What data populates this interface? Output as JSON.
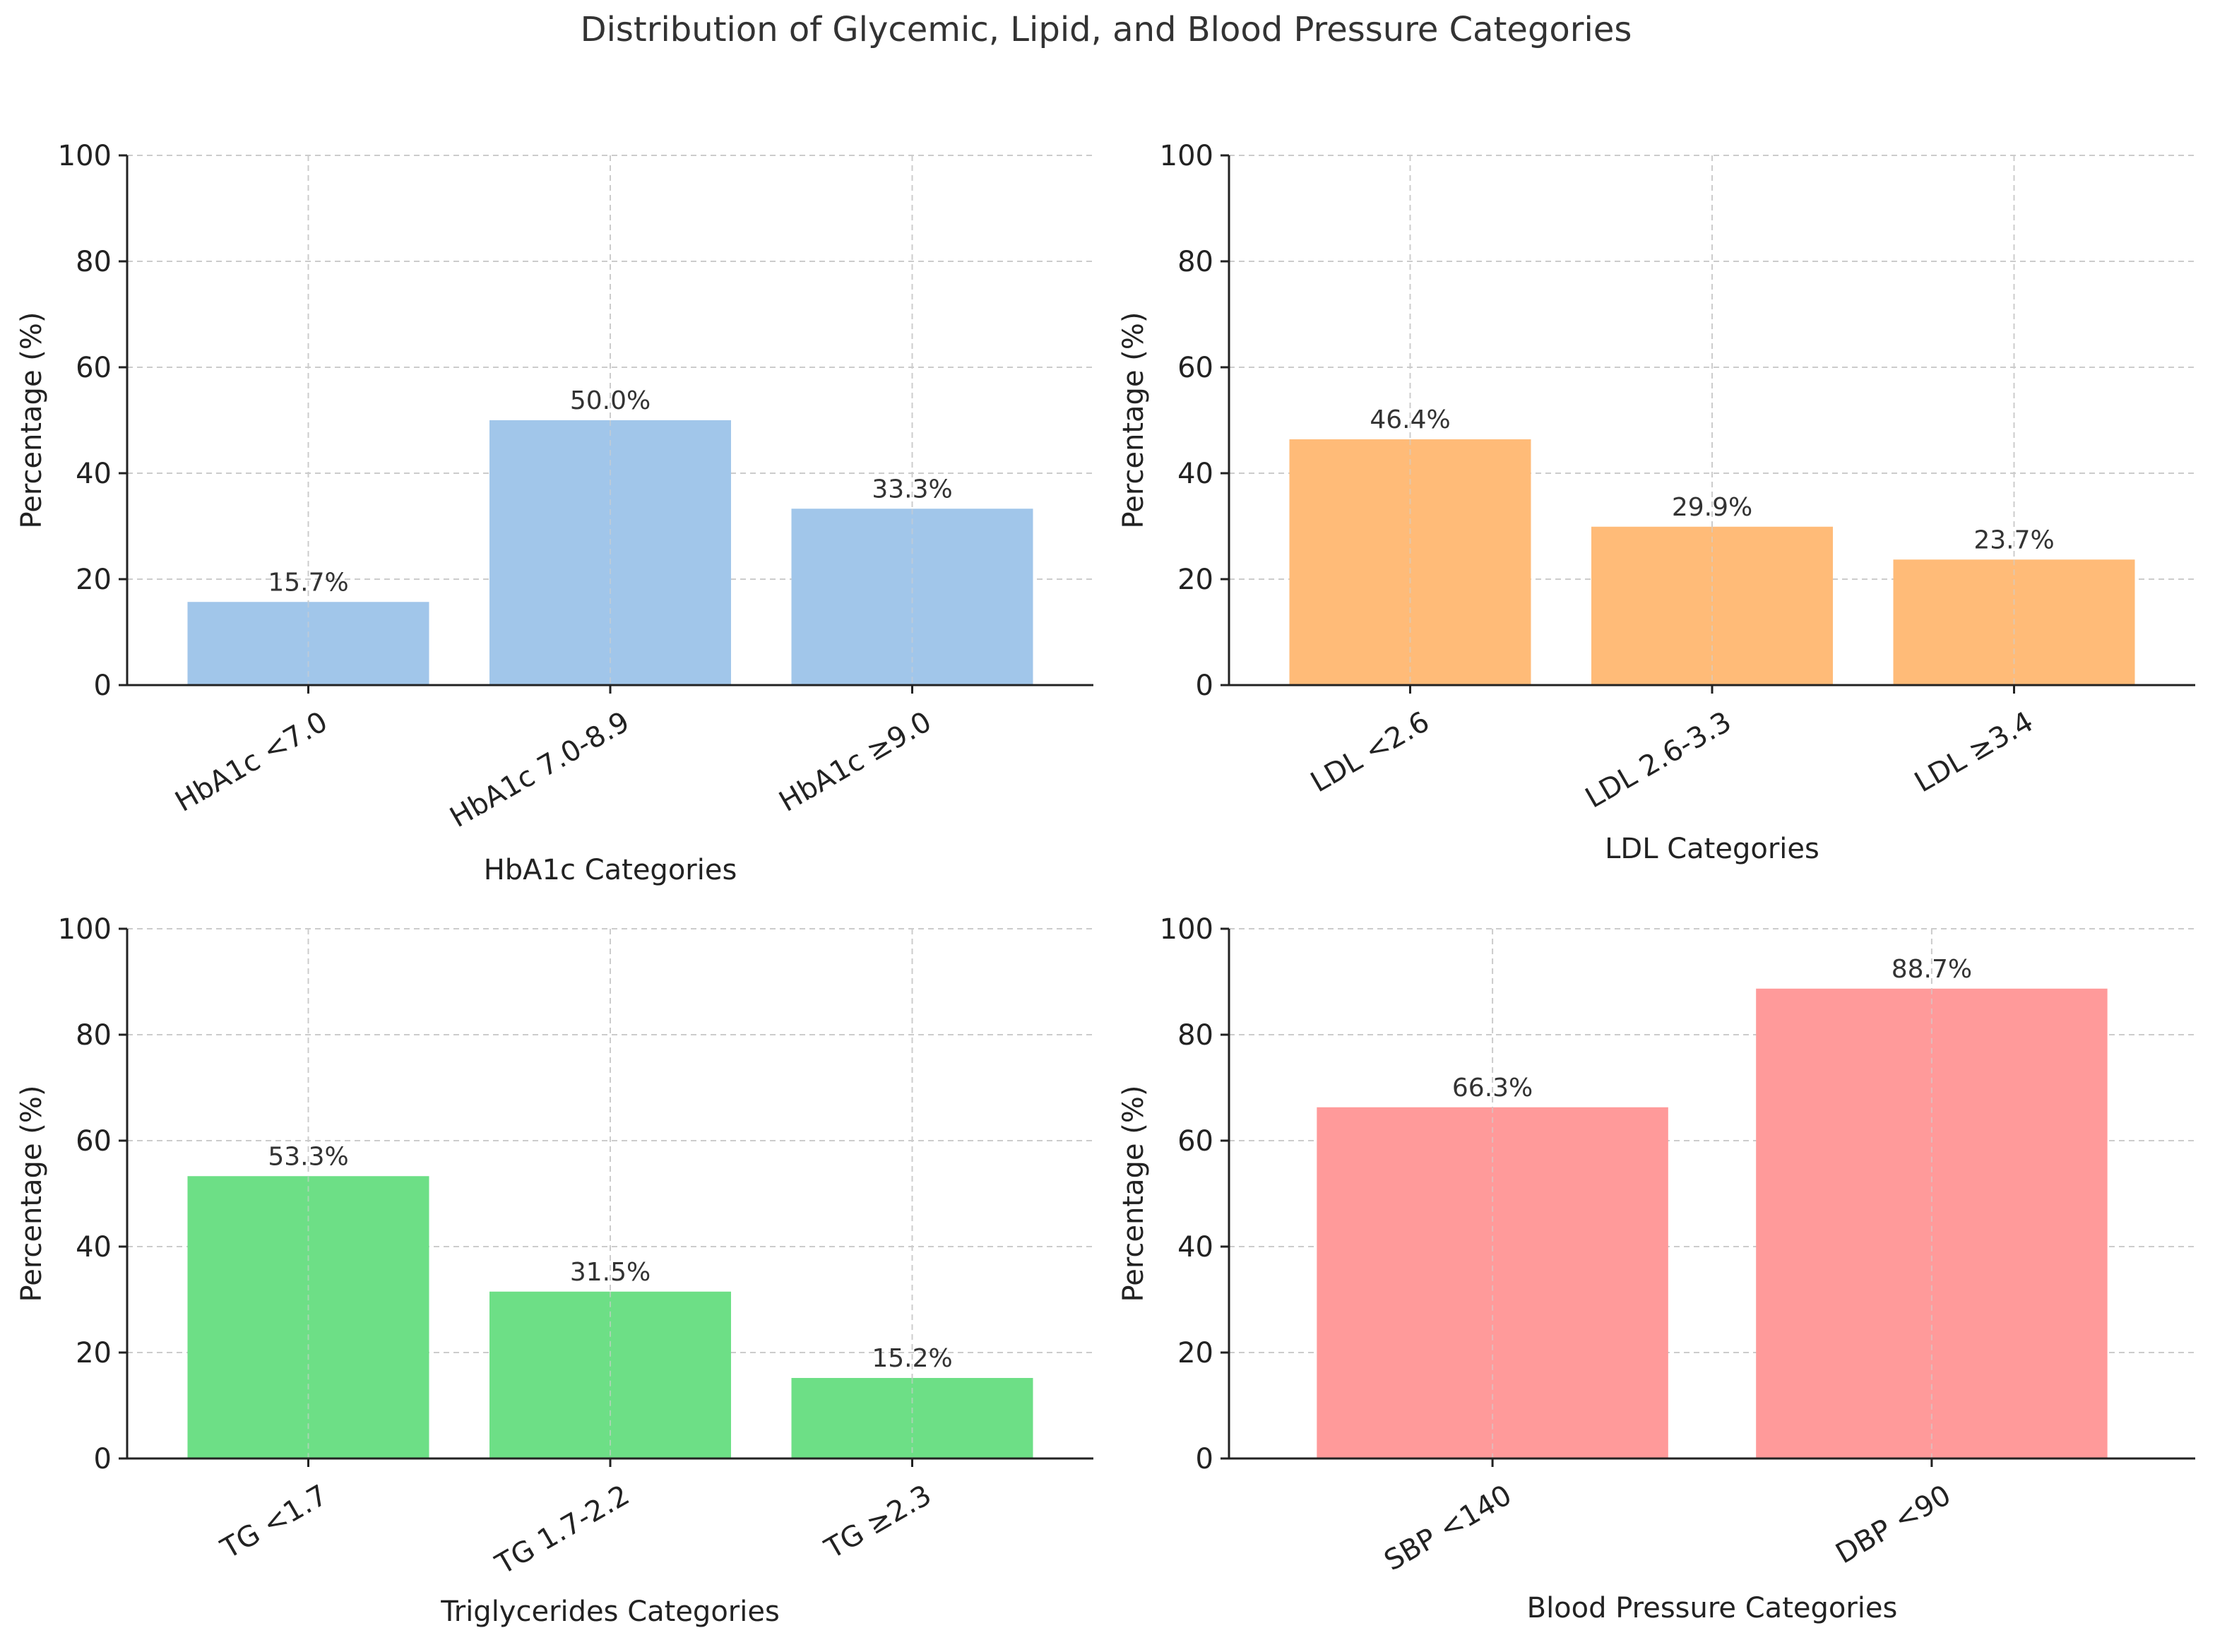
{
  "title": "Distribution of Glycemic, Lipid, and Blood Pressure Categories",
  "chart_data": [
    {
      "type": "bar",
      "title": "",
      "xlabel": "HbA1c Categories",
      "ylabel": "Percentage (%)",
      "ylim": [
        0,
        100
      ],
      "yticks": [
        0,
        20,
        40,
        60,
        80,
        100
      ],
      "grid": true,
      "color": "#a1c6ea",
      "categories": [
        "HbA1c <7.0",
        "HbA1c 7.0-8.9",
        "HbA1c ≥9.0"
      ],
      "values": [
        15.7,
        50.0,
        33.3
      ],
      "labels": [
        "15.7%",
        "50.0%",
        "33.3%"
      ]
    },
    {
      "type": "bar",
      "title": "",
      "xlabel": "LDL Categories",
      "ylabel": "Percentage (%)",
      "ylim": [
        0,
        100
      ],
      "yticks": [
        0,
        20,
        40,
        60,
        80,
        100
      ],
      "grid": true,
      "color": "#ffbb78",
      "categories": [
        "LDL <2.6",
        "LDL 2.6-3.3",
        "LDL ≥3.4"
      ],
      "values": [
        46.4,
        29.9,
        23.7
      ],
      "labels": [
        "46.4%",
        "29.9%",
        "23.7%"
      ]
    },
    {
      "type": "bar",
      "title": "",
      "xlabel": "Triglycerides Categories",
      "ylabel": "Percentage (%)",
      "ylim": [
        0,
        100
      ],
      "yticks": [
        0,
        20,
        40,
        60,
        80,
        100
      ],
      "grid": true,
      "color": "#6ddf86",
      "categories": [
        "TG <1.7",
        "TG 1.7-2.2",
        "TG ≥2.3"
      ],
      "values": [
        53.3,
        31.5,
        15.2
      ],
      "labels": [
        "53.3%",
        "31.5%",
        "15.2%"
      ]
    },
    {
      "type": "bar",
      "title": "",
      "xlabel": "Blood Pressure Categories",
      "ylabel": "Percentage (%)",
      "ylim": [
        0,
        100
      ],
      "yticks": [
        0,
        20,
        40,
        60,
        80,
        100
      ],
      "grid": true,
      "color": "#ff9a9a",
      "categories": [
        "SBP <140",
        "DBP <90"
      ],
      "values": [
        66.3,
        88.7
      ],
      "labels": [
        "66.3%",
        "88.7%"
      ]
    }
  ]
}
